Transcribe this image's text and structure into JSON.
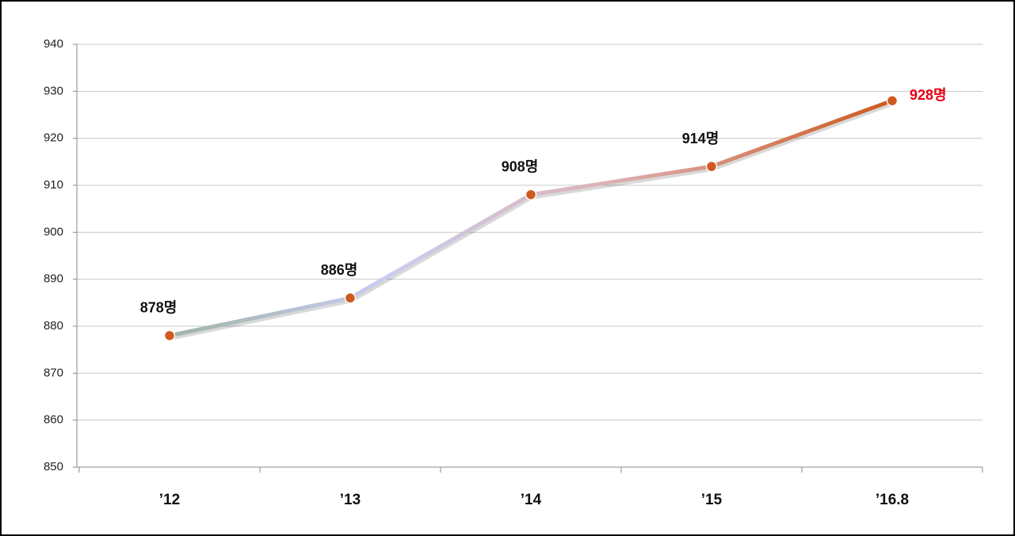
{
  "chart_data": {
    "type": "line",
    "categories": [
      "’12",
      "’13",
      "’14",
      "’15",
      "’16.8"
    ],
    "series": [
      {
        "color": "#cf5a1f",
        "values": [
          878,
          886,
          908,
          914,
          928
        ],
        "value_labels": [
          "878명",
          "886명",
          "908명",
          "914명",
          "928명"
        ],
        "value_label_colors": [
          "#111111",
          "#111111",
          "#111111",
          "#111111",
          "#e60012"
        ]
      }
    ],
    "ylim": [
      850,
      940
    ],
    "yticks": [
      850,
      860,
      870,
      880,
      890,
      900,
      910,
      920,
      930,
      940
    ],
    "grid": true
  }
}
